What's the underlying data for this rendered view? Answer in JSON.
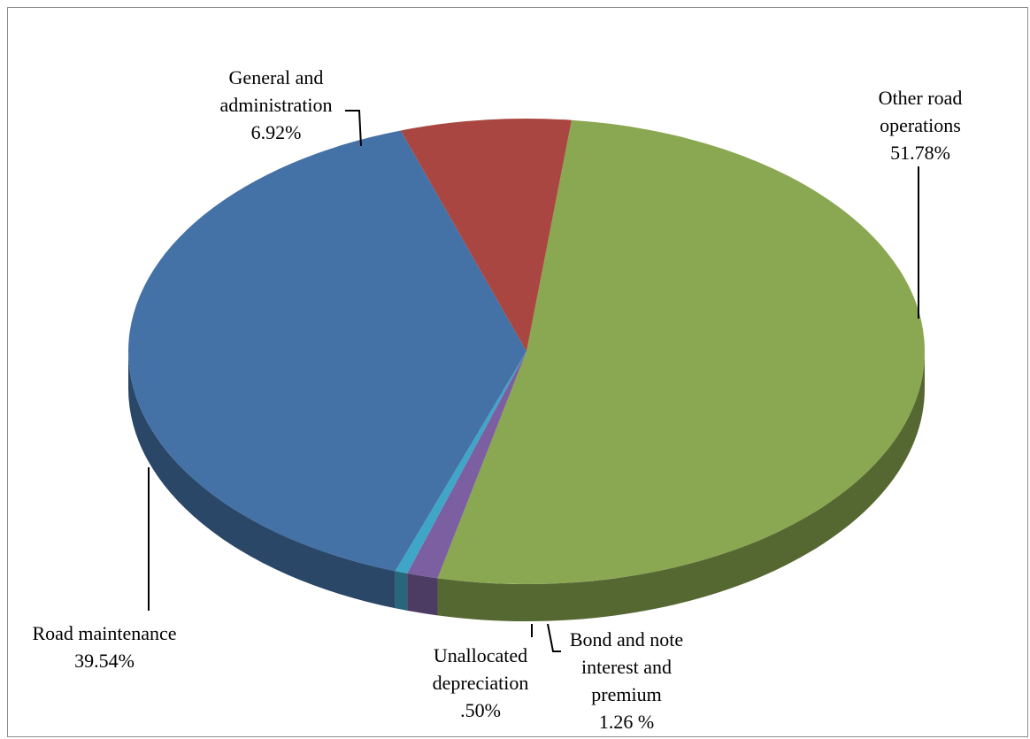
{
  "chart_data": {
    "type": "pie",
    "title": "",
    "legend": "none",
    "slices": [
      {
        "name": "Other road operations",
        "value": 51.78,
        "label_lines": [
          "Other road",
          "operations",
          "51.78%"
        ],
        "color": "#8aa751"
      },
      {
        "name": "Bond and note interest and premium",
        "value": 1.26,
        "label_lines": [
          "Bond and note",
          "interest and",
          "premium",
          "1.26 %"
        ],
        "color": "#7b5fa0"
      },
      {
        "name": "Unallocated depreciation",
        "value": 0.5,
        "label_lines": [
          "Unallocated",
          "depreciation",
          ".50%"
        ],
        "color": "#3fa6c8"
      },
      {
        "name": "Road maintenance",
        "value": 39.54,
        "label_lines": [
          "Road maintenance",
          "39.54%"
        ],
        "color": "#4472a6"
      },
      {
        "name": "General and administration",
        "value": 6.92,
        "label_lines": [
          "General and",
          "administration",
          "6.92%"
        ],
        "color": "#aa4641"
      }
    ]
  }
}
